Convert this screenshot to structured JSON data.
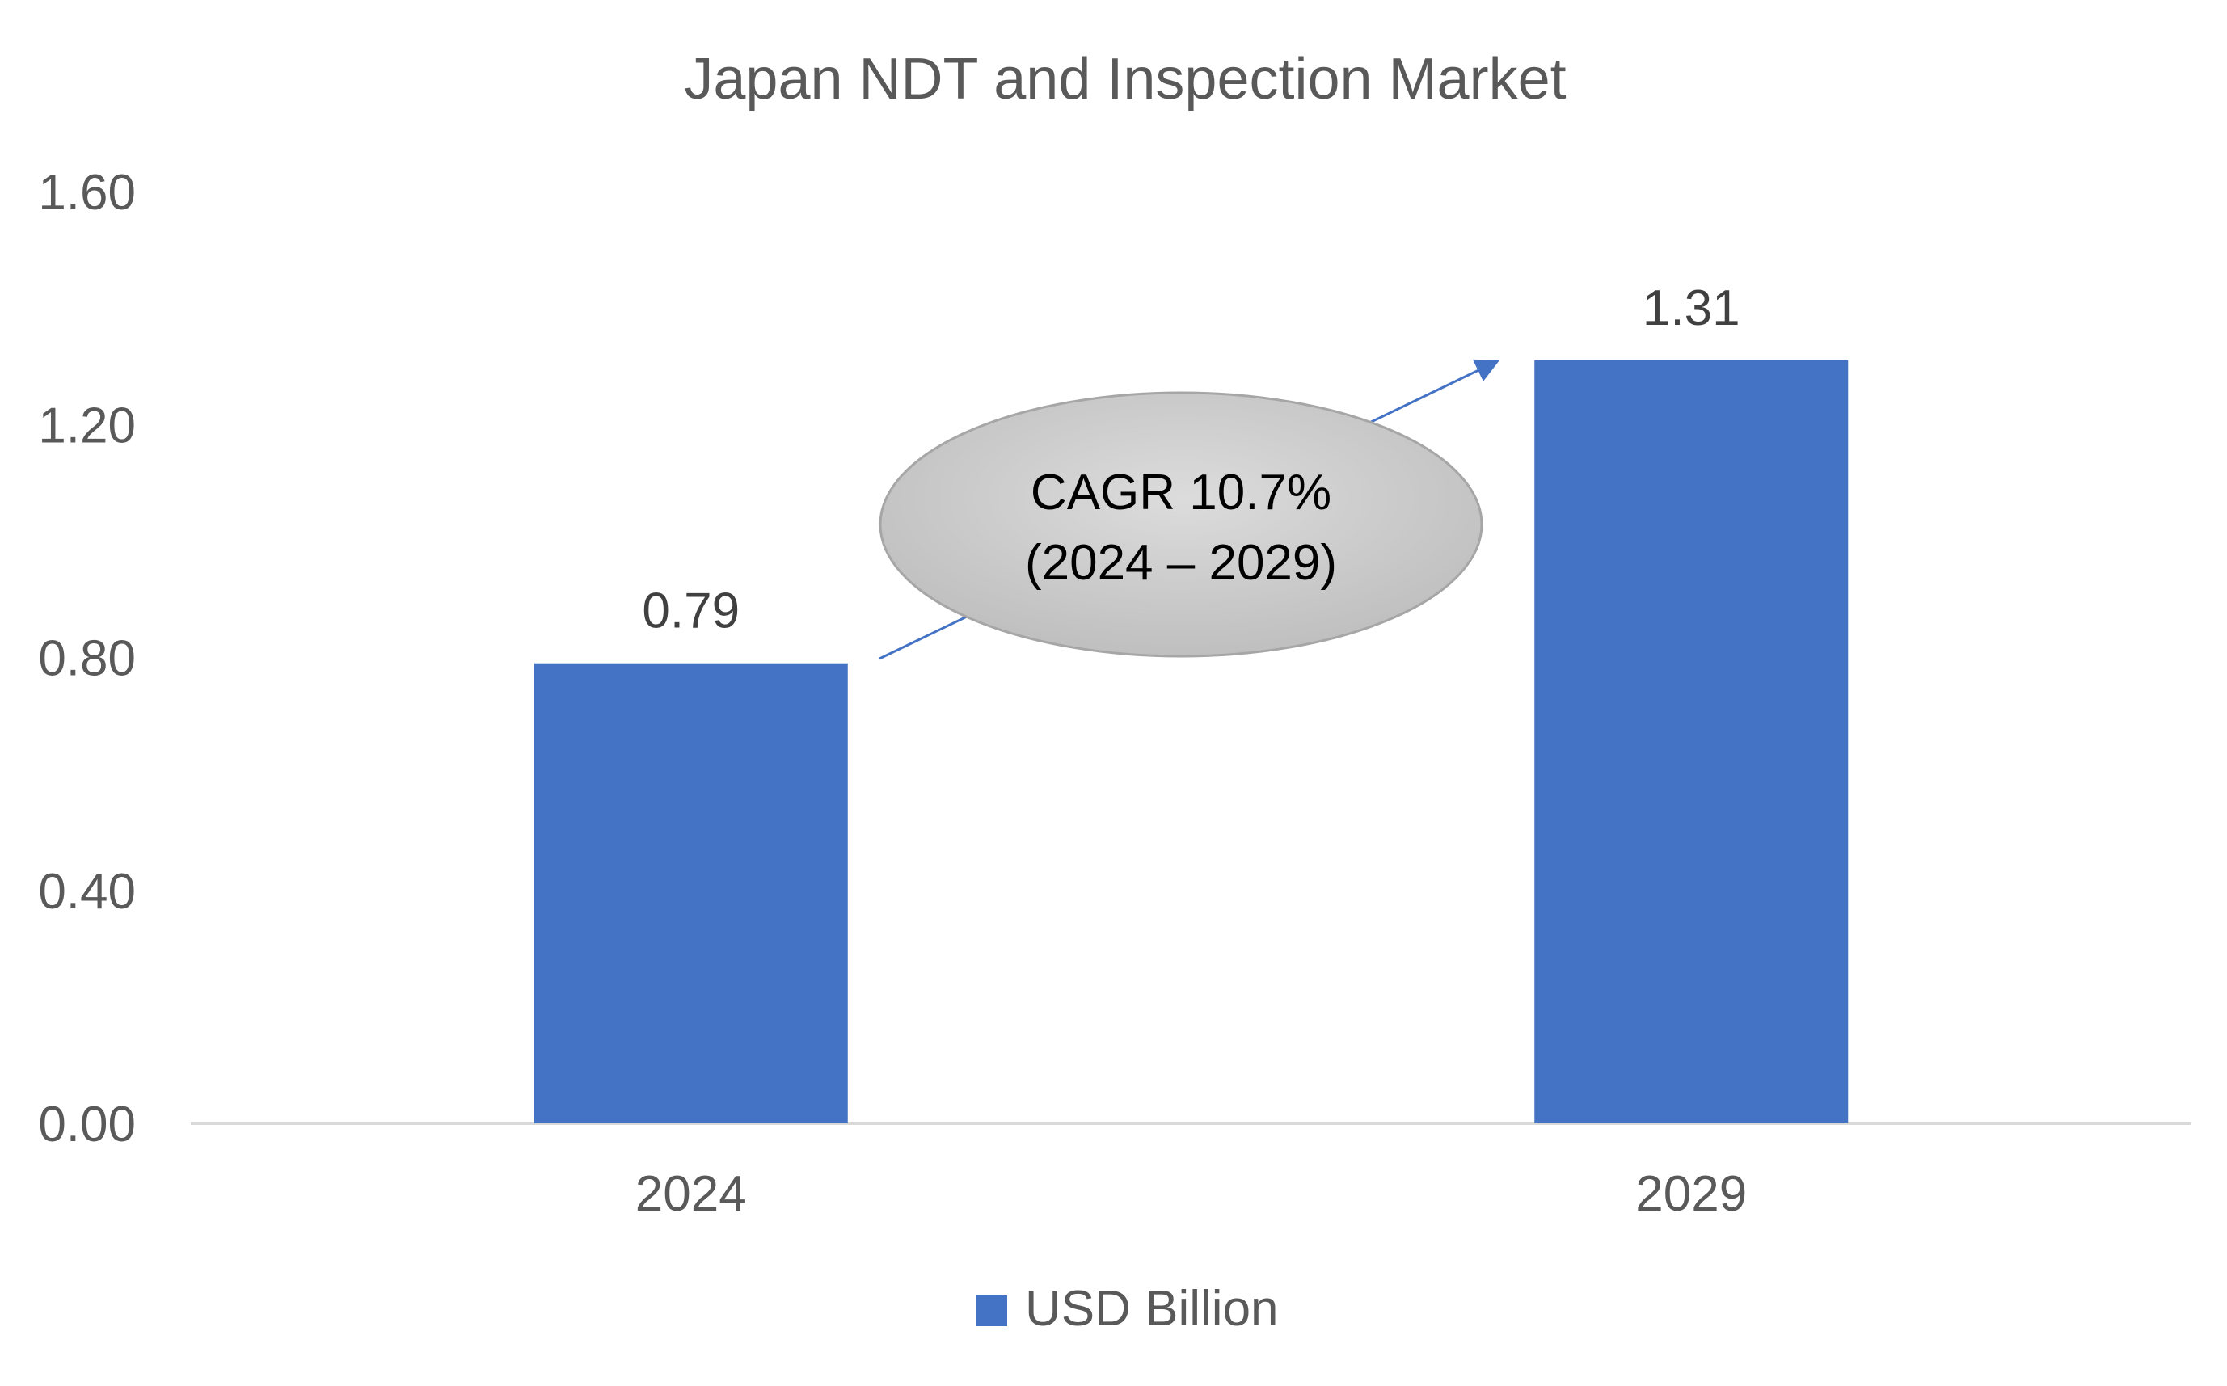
{
  "chart_data": {
    "type": "bar",
    "title": "Japan NDT and Inspection Market",
    "categories": [
      "2024",
      "2029"
    ],
    "series": [
      {
        "name": "USD Billion",
        "values": [
          0.79,
          1.31
        ],
        "color": "#4472C4"
      }
    ],
    "data_labels": [
      "0.79",
      "1.31"
    ],
    "xlabel": "",
    "ylabel": "",
    "ylim": [
      0,
      1.6
    ],
    "y_ticks": [
      0,
      0.4,
      0.8,
      1.2,
      1.6
    ],
    "y_tick_labels": [
      "0.00",
      "0.40",
      "0.80",
      "1.20",
      "1.60"
    ],
    "grid": false,
    "legend_position": "bottom",
    "annotation": {
      "line1": "CAGR 10.7%",
      "line2": "(2024 – 2029)",
      "shape": "ellipse",
      "arrow": "from-first-bar-to-last-bar"
    }
  },
  "colors": {
    "bar": "#4472C4",
    "axis_text": "#595959",
    "label_text": "#404040",
    "axis_line": "#D9D9D9",
    "ellipse_fill": "#C8C8C8",
    "ellipse_stroke": "#A6A6A6",
    "arrow": "#4472C4"
  }
}
